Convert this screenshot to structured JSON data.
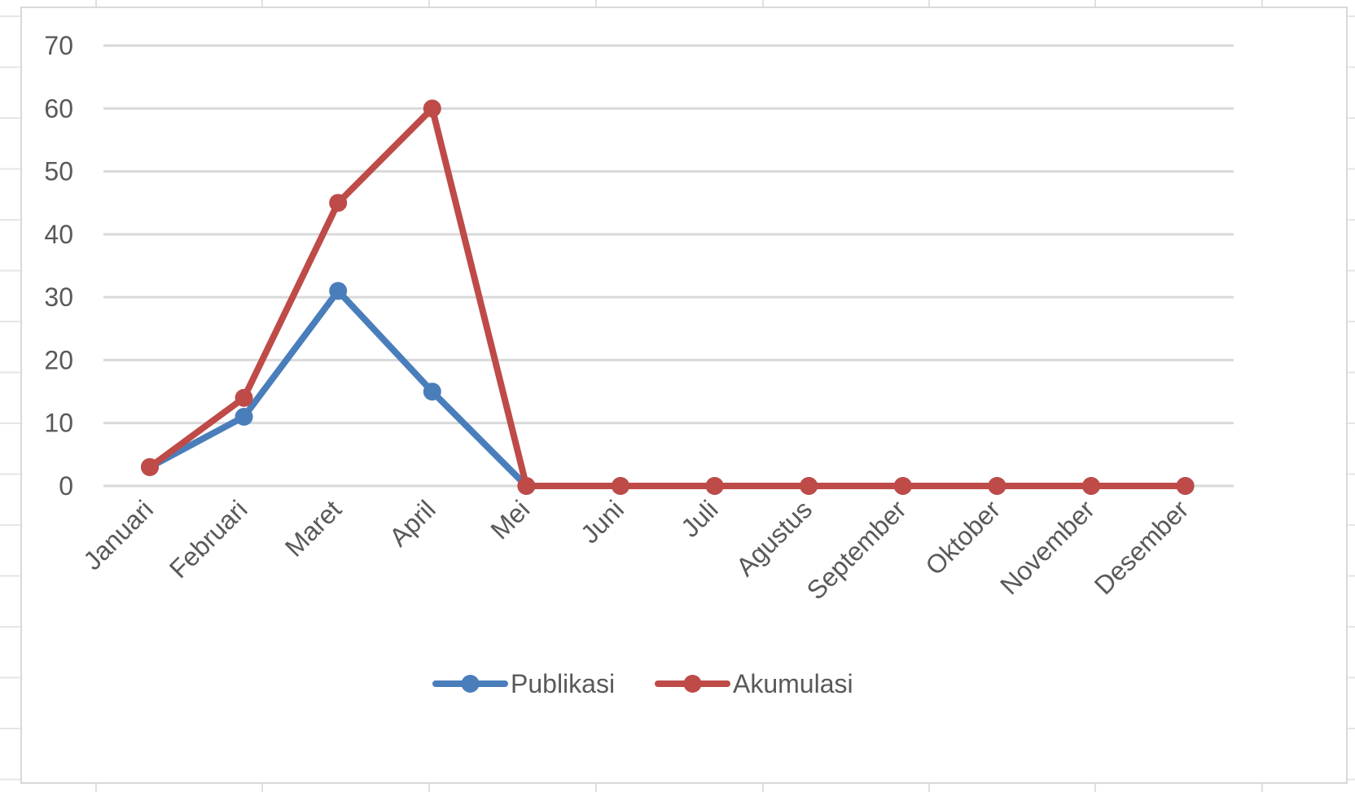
{
  "chart_data": {
    "type": "line",
    "categories": [
      "Januari",
      "Februari",
      "Maret",
      "April",
      "Mei",
      "Juni",
      "Juli",
      "Agustus",
      "September",
      "Oktober",
      "November",
      "Desember"
    ],
    "series": [
      {
        "name": "Publikasi",
        "color": "#4a7ebb",
        "values": [
          3,
          11,
          31,
          15,
          0,
          0,
          0,
          0,
          0,
          0,
          0,
          0
        ]
      },
      {
        "name": "Akumulasi",
        "color": "#be4b48",
        "values": [
          3,
          14,
          45,
          60,
          0,
          0,
          0,
          0,
          0,
          0,
          0,
          0
        ]
      }
    ],
    "yticks": [
      "0",
      "10",
      "20",
      "30",
      "40",
      "50",
      "60",
      "70"
    ],
    "ylim": [
      0,
      70
    ],
    "grid": true,
    "legend_position": "bottom",
    "markers": "circle"
  }
}
